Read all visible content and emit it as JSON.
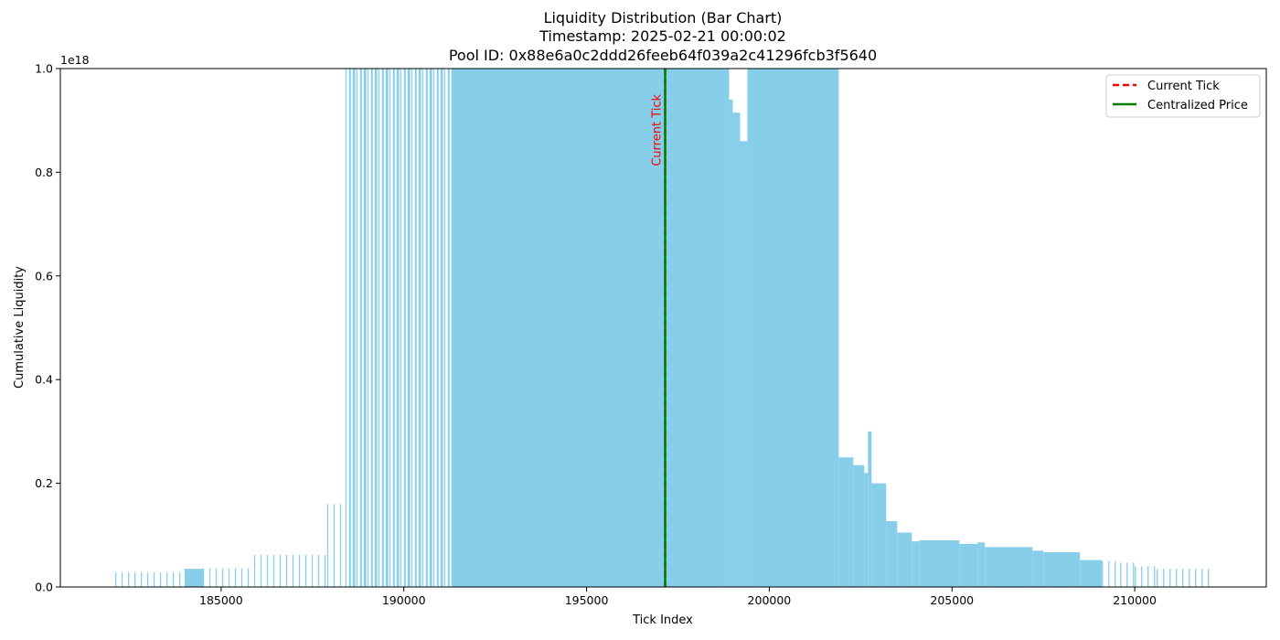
{
  "chart_data": {
    "type": "bar",
    "title_lines": [
      "Liquidity Distribution (Bar Chart)",
      "Timestamp: 2025-02-21 00:00:02",
      "Pool ID: 0x88e6a0c2ddd26feeb64f039a2c41296fcb3f5640"
    ],
    "xlabel": "Tick Index",
    "ylabel": "Cumulative Liquidity",
    "y_offset_text": "1e18",
    "xlim": [
      180600,
      213600
    ],
    "ylim": [
      0,
      1.0
    ],
    "x_ticks": [
      185000,
      190000,
      195000,
      200000,
      205000,
      210000
    ],
    "x_tick_labels": [
      "185000",
      "190000",
      "195000",
      "200000",
      "205000",
      "210000"
    ],
    "y_ticks": [
      0,
      0.2,
      0.4,
      0.6,
      0.8,
      1.0
    ],
    "y_tick_labels": [
      "0.0",
      "0.2",
      "0.4",
      "0.6",
      "0.8",
      "1.0"
    ],
    "bar_color": "#87ceeb",
    "segments": [
      {
        "x0": 182100,
        "x1": 184000,
        "y": 0.028,
        "sparse": true
      },
      {
        "x0": 184000,
        "x1": 184500,
        "y": 0.035,
        "sparse": false
      },
      {
        "x0": 184500,
        "x1": 185900,
        "y": 0.036,
        "sparse": true
      },
      {
        "x0": 185900,
        "x1": 187900,
        "y": 0.062,
        "sparse": true
      },
      {
        "x0": 187900,
        "x1": 188400,
        "y": 0.16,
        "sparse": true
      },
      {
        "x0": 188400,
        "x1": 191300,
        "y": 1.0,
        "sparse": true
      },
      {
        "x0": 191300,
        "x1": 198900,
        "y": 1.0,
        "sparse": false
      },
      {
        "x0": 198900,
        "x1": 199000,
        "y": 0.94,
        "sparse": false
      },
      {
        "x0": 199000,
        "x1": 199200,
        "y": 0.915,
        "sparse": false
      },
      {
        "x0": 199200,
        "x1": 199400,
        "y": 0.86,
        "sparse": false
      },
      {
        "x0": 199400,
        "x1": 201900,
        "y": 1.0,
        "sparse": false
      },
      {
        "x0": 201900,
        "x1": 202300,
        "y": 0.25,
        "sparse": false
      },
      {
        "x0": 202300,
        "x1": 202600,
        "y": 0.235,
        "sparse": false
      },
      {
        "x0": 202600,
        "x1": 202700,
        "y": 0.22,
        "sparse": false
      },
      {
        "x0": 202700,
        "x1": 202800,
        "y": 0.3,
        "sparse": false
      },
      {
        "x0": 202800,
        "x1": 203200,
        "y": 0.2,
        "sparse": false
      },
      {
        "x0": 203200,
        "x1": 203500,
        "y": 0.127,
        "sparse": false
      },
      {
        "x0": 203500,
        "x1": 203900,
        "y": 0.105,
        "sparse": false
      },
      {
        "x0": 203900,
        "x1": 204100,
        "y": 0.088,
        "sparse": false
      },
      {
        "x0": 204100,
        "x1": 205200,
        "y": 0.09,
        "sparse": false
      },
      {
        "x0": 205200,
        "x1": 205700,
        "y": 0.083,
        "sparse": false
      },
      {
        "x0": 205700,
        "x1": 205900,
        "y": 0.086,
        "sparse": false
      },
      {
        "x0": 205900,
        "x1": 207200,
        "y": 0.077,
        "sparse": false
      },
      {
        "x0": 207200,
        "x1": 207500,
        "y": 0.07,
        "sparse": false
      },
      {
        "x0": 207500,
        "x1": 208500,
        "y": 0.067,
        "sparse": false
      },
      {
        "x0": 208500,
        "x1": 209100,
        "y": 0.052,
        "sparse": false
      },
      {
        "x0": 209100,
        "x1": 209600,
        "y": 0.05,
        "sparse": true
      },
      {
        "x0": 209600,
        "x1": 210000,
        "y": 0.047,
        "sparse": true
      },
      {
        "x0": 210000,
        "x1": 210600,
        "y": 0.04,
        "sparse": true
      },
      {
        "x0": 210600,
        "x1": 212100,
        "y": 0.035,
        "sparse": true
      }
    ],
    "current_tick": {
      "x": 197150,
      "label": "Current Tick",
      "color": "#ff0000"
    },
    "centralized_price": {
      "x": 197150,
      "color": "#008000"
    },
    "legend": {
      "placement": "top-right",
      "entries": [
        {
          "label": "Current Tick",
          "color": "#ff0000",
          "style": "dashed"
        },
        {
          "label": "Centralized Price",
          "color": "#008000",
          "style": "solid"
        }
      ]
    }
  }
}
